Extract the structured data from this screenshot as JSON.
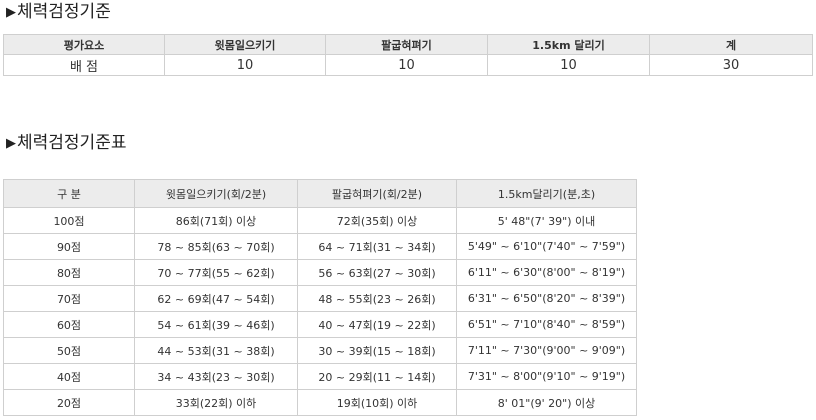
{
  "section1": {
    "title": "체력검정기준",
    "headers": [
      "평가요소",
      "윗몸일으키기",
      "팔굽혀펴기",
      "1.5km 달리기",
      "계"
    ],
    "row": [
      "배 점",
      "10",
      "10",
      "10",
      "30"
    ]
  },
  "section2": {
    "title": "체력검정기준표",
    "headers": [
      "구 분",
      "윗몸일으키기(회/2분)",
      "팔굽혀펴기(회/2분)",
      "1.5km달리기(분,초)"
    ],
    "rows": [
      [
        "100점",
        "86회(71회) 이상",
        "72회(35회) 이상",
        "5' 48\"(7' 39\") 이내"
      ],
      [
        "90점",
        "78 ~ 85회(63 ~ 70회)",
        "64 ~ 71회(31 ~ 34회)",
        "5'49\" ~ 6'10\"(7'40\" ~ 7'59\")"
      ],
      [
        "80점",
        "70 ~ 77회(55 ~ 62회)",
        "56 ~ 63회(27 ~ 30회)",
        "6'11\" ~ 6'30\"(8'00\" ~ 8'19\")"
      ],
      [
        "70점",
        "62 ~ 69회(47 ~ 54회)",
        "48 ~ 55회(23 ~ 26회)",
        "6'31\" ~ 6'50\"(8'20\" ~ 8'39\")"
      ],
      [
        "60점",
        "54 ~ 61회(39 ~ 46회)",
        "40 ~ 47회(19 ~ 22회)",
        "6'51\" ~ 7'10\"(8'40\" ~ 8'59\")"
      ],
      [
        "50점",
        "44 ~ 53회(31 ~ 38회)",
        "30 ~ 39회(15 ~ 18회)",
        "7'11\" ~ 7'30\"(9'00\" ~ 9'09\")"
      ],
      [
        "40점",
        "34 ~ 43회(23 ~ 30회)",
        "20 ~ 29회(11 ~ 14회)",
        "7'31\" ~ 8'00\"(9'10\" ~ 9'19\")"
      ],
      [
        "20점",
        "33회(22회) 이하",
        "19회(10회) 이하",
        "8' 01\"(9' 20\") 이상"
      ]
    ]
  }
}
